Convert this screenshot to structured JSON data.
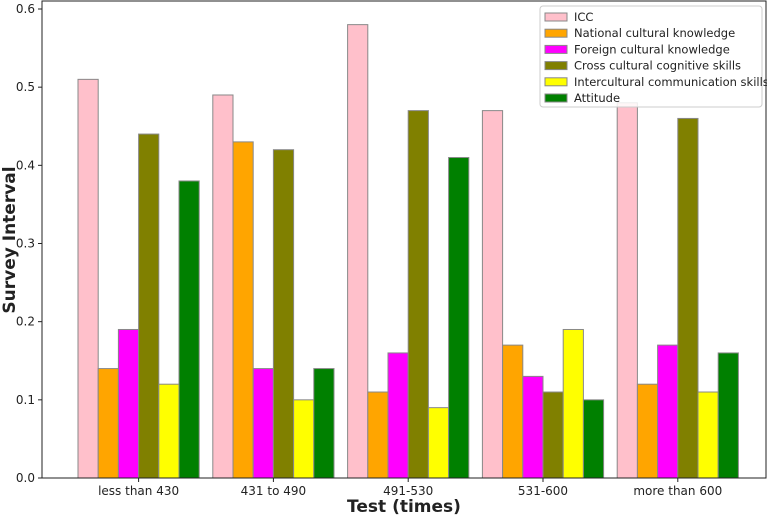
{
  "chart_data": {
    "type": "bar",
    "title": "",
    "xlabel": "Test (times)",
    "ylabel": "Survey Interval",
    "ylim": [
      0,
      0.61
    ],
    "yticks": [
      "0.0",
      "0.1",
      "0.2",
      "0.3",
      "0.4",
      "0.5",
      "0.6"
    ],
    "ytick_values": [
      0,
      0.1,
      0.2,
      0.3,
      0.4,
      0.5,
      0.6
    ],
    "categories": [
      "less than 430",
      "431 to 490",
      "491-530",
      "531-600",
      "more than 600"
    ],
    "legend_position": "top-right",
    "grid": false,
    "series": [
      {
        "name": "ICC",
        "color": "#ffc0cb",
        "values": [
          0.51,
          0.49,
          0.58,
          0.47,
          0.48
        ]
      },
      {
        "name": "National cultural knowledge",
        "color": "#ffa500",
        "values": [
          0.14,
          0.43,
          0.11,
          0.17,
          0.12
        ]
      },
      {
        "name": "Foreign cultural knowledge",
        "color": "#ff00ff",
        "values": [
          0.19,
          0.14,
          0.16,
          0.13,
          0.17
        ]
      },
      {
        "name": "Cross cultural cognitive skills",
        "color": "#808000",
        "values": [
          0.44,
          0.42,
          0.47,
          0.11,
          0.46
        ]
      },
      {
        "name": "Intercultural communication skills",
        "color": "#ffff00",
        "values": [
          0.12,
          0.1,
          0.09,
          0.19,
          0.11
        ]
      },
      {
        "name": "Attitude",
        "color": "#008000",
        "values": [
          0.38,
          0.14,
          0.41,
          0.1,
          0.16
        ]
      }
    ]
  }
}
